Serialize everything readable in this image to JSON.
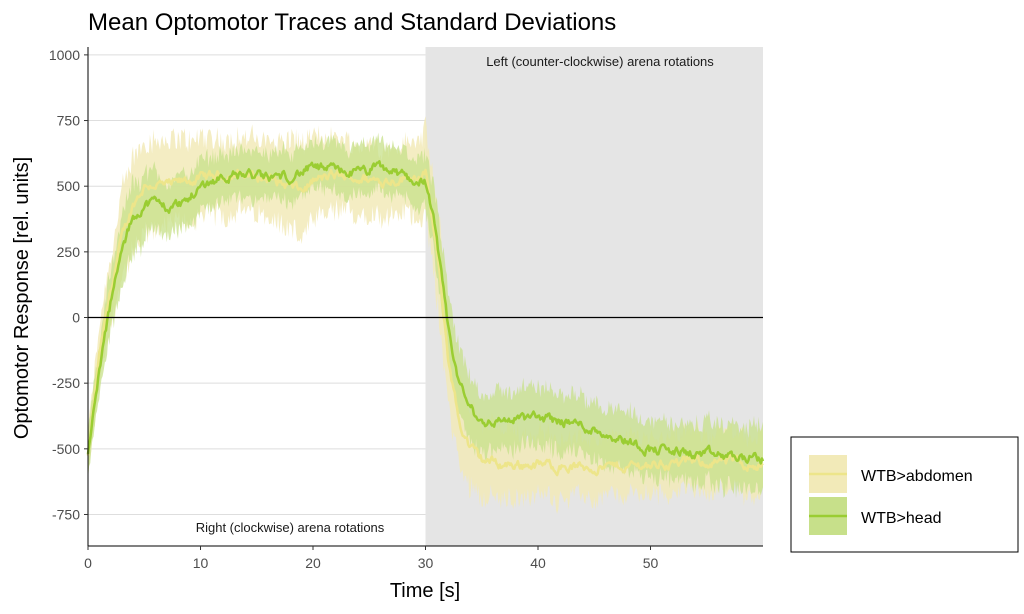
{
  "chart_data": {
    "type": "line",
    "title": "Mean Optomotor Traces and Standard Deviations",
    "xlabel": "Time [s]",
    "ylabel": "Optomotor Response [rel. units]",
    "xlim": [
      0,
      60
    ],
    "ylim": [
      -870,
      1030
    ],
    "x_ticks": [
      0,
      10,
      20,
      30,
      40,
      50
    ],
    "y_ticks": [
      -750,
      -500,
      -250,
      0,
      250,
      500,
      750,
      1000
    ],
    "grid": true,
    "zero_line": true,
    "shaded_region": {
      "x_from": 30,
      "x_to": 60,
      "color": "#e5e5e5"
    },
    "annotations": {
      "left_rotation": "Left (counter-clockwise) arena rotations",
      "right_rotation": "Right (clockwise) arena rotations"
    },
    "legend_position": "right",
    "series": [
      {
        "name": "WTB>abdomen",
        "line_color": "#ede58a",
        "band_color": "#f2eab8",
        "x": [
          0,
          1,
          2,
          3,
          4,
          5,
          6,
          7,
          8,
          10,
          12,
          14,
          16,
          18,
          19,
          20,
          22,
          24,
          26,
          28,
          29,
          30,
          31,
          32,
          33,
          34,
          35,
          37,
          40,
          43,
          46,
          50,
          54,
          57,
          60
        ],
        "mean": [
          -530,
          -150,
          100,
          300,
          430,
          500,
          510,
          500,
          510,
          530,
          540,
          545,
          530,
          500,
          480,
          520,
          540,
          530,
          520,
          530,
          540,
          550,
          250,
          -150,
          -400,
          -500,
          -540,
          -560,
          -560,
          -570,
          -570,
          -560,
          -550,
          -550,
          -560
        ],
        "sd": [
          90,
          110,
          130,
          160,
          180,
          180,
          170,
          160,
          160,
          150,
          140,
          140,
          140,
          170,
          180,
          160,
          140,
          130,
          130,
          130,
          140,
          160,
          180,
          180,
          160,
          150,
          140,
          130,
          120,
          110,
          110,
          110,
          110,
          110,
          110
        ]
      },
      {
        "name": "WTB>head",
        "line_color": "#9acd32",
        "band_color": "#c7e08a",
        "x": [
          0,
          1,
          2,
          3,
          4,
          5,
          6,
          7,
          8,
          9,
          10,
          12,
          14,
          16,
          18,
          20,
          22,
          24,
          26,
          28,
          29,
          30,
          31,
          32,
          33,
          34,
          35,
          37,
          40,
          43,
          46,
          48,
          50,
          54,
          57,
          60
        ],
        "mean": [
          -530,
          -200,
          50,
          250,
          380,
          430,
          440,
          420,
          430,
          450,
          500,
          540,
          545,
          530,
          540,
          570,
          560,
          550,
          570,
          540,
          520,
          520,
          300,
          -50,
          -250,
          -350,
          -400,
          -390,
          -380,
          -400,
          -440,
          -470,
          -500,
          -520,
          -530,
          -540
        ],
        "sd": [
          80,
          100,
          120,
          130,
          130,
          120,
          110,
          100,
          100,
          100,
          100,
          90,
          90,
          90,
          90,
          90,
          90,
          90,
          90,
          90,
          90,
          100,
          120,
          130,
          130,
          120,
          110,
          110,
          110,
          110,
          110,
          110,
          110,
          110,
          120,
          120
        ]
      }
    ]
  }
}
